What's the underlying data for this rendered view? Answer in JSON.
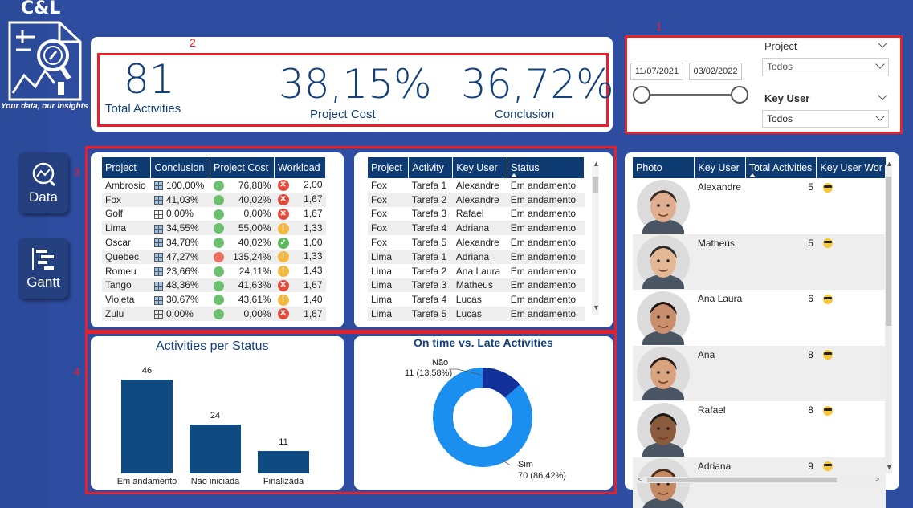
{
  "logo": {
    "title": "C&L",
    "tagline": "Your data, our insights"
  },
  "nav": [
    {
      "label": "Data",
      "icon": "data-analysis-icon"
    },
    {
      "label": "Gantt",
      "icon": "gantt-chart-icon"
    }
  ],
  "annotations": [
    "1",
    "2",
    "3",
    "4"
  ],
  "kpis": [
    {
      "value": "81",
      "label": "Total Activities"
    },
    {
      "value": "38,15%",
      "label": "Project Cost"
    },
    {
      "value": "36,72%",
      "label": "Conclusion"
    }
  ],
  "filters": {
    "date_start": "11/07/2021",
    "date_end": "03/02/2022",
    "project_label": "Project",
    "project_value": "Todos",
    "key_user_label": "Key User",
    "key_user_value": "Todos"
  },
  "project_table": {
    "headers": [
      "Project",
      "Conclusion",
      "Project Cost",
      "Workload"
    ],
    "rows": [
      {
        "project": "Ambrosio",
        "conclusion": "100,00%",
        "cost": "76,88%",
        "workload": "2,00",
        "grid": "full",
        "cost_color": "green",
        "status": "bad"
      },
      {
        "project": "Fox",
        "conclusion": "41,03%",
        "cost": "40,02%",
        "workload": "1,67",
        "grid": "full",
        "cost_color": "green",
        "status": "bad"
      },
      {
        "project": "Golf",
        "conclusion": "0,00%",
        "cost": "0,00%",
        "workload": "1,67",
        "grid": "empty",
        "cost_color": "green",
        "status": "bad"
      },
      {
        "project": "Lima",
        "conclusion": "34,55%",
        "cost": "55,00%",
        "workload": "1,33",
        "grid": "full",
        "cost_color": "green",
        "status": "warn"
      },
      {
        "project": "Oscar",
        "conclusion": "34,78%",
        "cost": "40,02%",
        "workload": "1,00",
        "grid": "full",
        "cost_color": "green",
        "status": "ok"
      },
      {
        "project": "Quebec",
        "conclusion": "47,27%",
        "cost": "135,24%",
        "workload": "1,33",
        "grid": "full",
        "cost_color": "red",
        "status": "warn"
      },
      {
        "project": "Romeu",
        "conclusion": "23,66%",
        "cost": "24,11%",
        "workload": "1,43",
        "grid": "full",
        "cost_color": "green",
        "status": "warn"
      },
      {
        "project": "Tango",
        "conclusion": "48,36%",
        "cost": "41,63%",
        "workload": "1,67",
        "grid": "full",
        "cost_color": "green",
        "status": "bad"
      },
      {
        "project": "Violeta",
        "conclusion": "30,67%",
        "cost": "43,61%",
        "workload": "1,40",
        "grid": "full",
        "cost_color": "green",
        "status": "warn"
      },
      {
        "project": "Zulu",
        "conclusion": "0,00%",
        "cost": "0,00%",
        "workload": "1,67",
        "grid": "empty",
        "cost_color": "green",
        "status": "bad"
      }
    ]
  },
  "activity_table": {
    "headers": [
      "Project",
      "Activity",
      "Key User",
      "Status"
    ],
    "rows": [
      {
        "project": "Fox",
        "activity": "Tarefa 1",
        "user": "Alexandre",
        "status": "Em andamento"
      },
      {
        "project": "Fox",
        "activity": "Tarefa 2",
        "user": "Alexandre",
        "status": "Em andamento"
      },
      {
        "project": "Fox",
        "activity": "Tarefa 3",
        "user": "Rafael",
        "status": "Em andamento"
      },
      {
        "project": "Fox",
        "activity": "Tarefa 4",
        "user": "Adriana",
        "status": "Em andamento"
      },
      {
        "project": "Fox",
        "activity": "Tarefa 5",
        "user": "Alexandre",
        "status": "Em andamento"
      },
      {
        "project": "Lima",
        "activity": "Tarefa 1",
        "user": "Adriana",
        "status": "Em andamento"
      },
      {
        "project": "Lima",
        "activity": "Tarefa 2",
        "user": "Ana Laura",
        "status": "Em andamento"
      },
      {
        "project": "Lima",
        "activity": "Tarefa 3",
        "user": "Matheus",
        "status": "Em andamento"
      },
      {
        "project": "Lima",
        "activity": "Tarefa 4",
        "user": "Lucas",
        "status": "Em andamento"
      },
      {
        "project": "Lima",
        "activity": "Tarefa 5",
        "user": "Lucas",
        "status": "Em andamento"
      }
    ]
  },
  "users_table": {
    "headers": [
      "Photo",
      "Key User",
      "Total Activities",
      "Key User Wor"
    ],
    "rows": [
      {
        "user": "Alexandre",
        "total": "5",
        "skin": "#e0ad8e",
        "hair": "#3a2a22"
      },
      {
        "user": "Matheus",
        "total": "5",
        "skin": "#e4b894",
        "hair": "#2c2c2c"
      },
      {
        "user": "Ana Laura",
        "total": "6",
        "skin": "#c98f6c",
        "hair": "#1c1410"
      },
      {
        "user": "Ana",
        "total": "8",
        "skin": "#d9a27e",
        "hair": "#2a1a12"
      },
      {
        "user": "Rafael",
        "total": "8",
        "skin": "#8a5a3c",
        "hair": "#1a1a1a"
      },
      {
        "user": "Adriana",
        "total": "9",
        "skin": "#c48a64",
        "hair": "#4a2a18"
      }
    ]
  },
  "status_chart": {
    "title": "Activities per Status"
  },
  "donut_chart": {
    "title": "On time vs. Late Activities",
    "labels": [
      {
        "name": "Não",
        "value": "11 (13,58%)"
      },
      {
        "name": "Sim",
        "value": "70 (86,42%)"
      }
    ]
  },
  "chart_data": [
    {
      "type": "bar",
      "title": "Activities per Status",
      "categories": [
        "Em andamento",
        "Não iniciada",
        "Finalizada"
      ],
      "values": [
        46,
        24,
        11
      ],
      "ylim": [
        0,
        50
      ],
      "grid": false
    },
    {
      "type": "pie",
      "title": "On time vs. Late Activities",
      "categories": [
        "Não",
        "Sim"
      ],
      "values": [
        11,
        70
      ],
      "colors": [
        "#12309a",
        "#1a8ff0"
      ]
    }
  ]
}
